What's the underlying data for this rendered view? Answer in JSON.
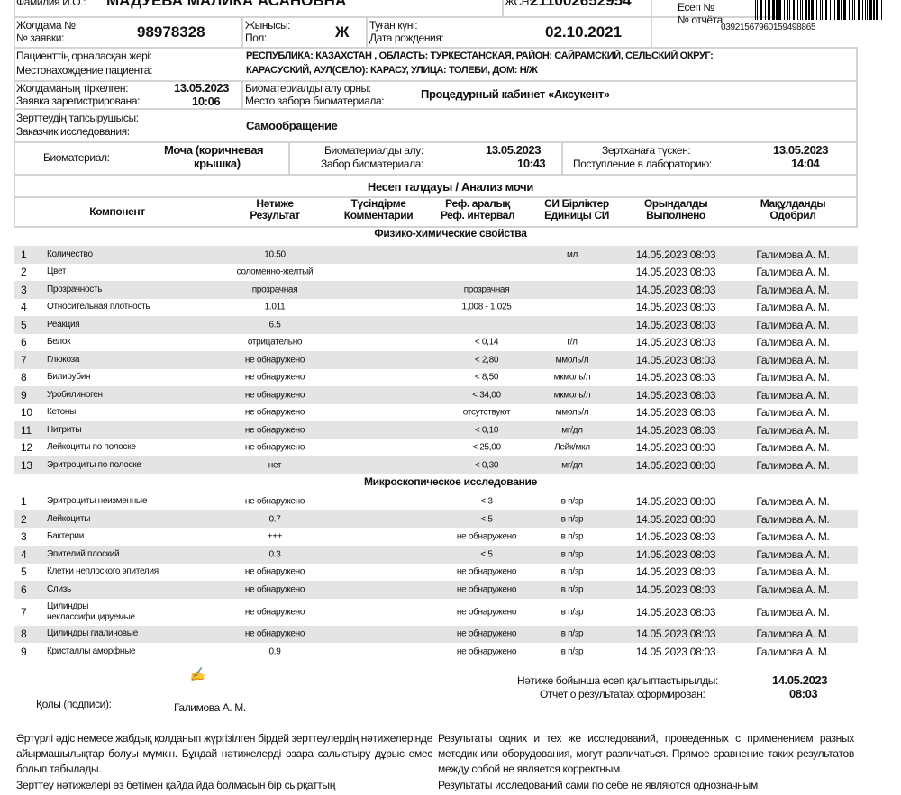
{
  "patient": {
    "name_label": "Фамилия И.О.:",
    "name": "МАДУЕВА МАЛИКА АСАНОВНА",
    "iin_label": "ЖСН:",
    "iin": "211002652954",
    "report_no_label_kz": "Есеп №",
    "report_no_label_ru": "№ отчёта",
    "barcode_number": "03921567960159498865",
    "request_label_kz": "Жолдама №",
    "request_label_ru": "№ заявки:",
    "request_no": "98978328",
    "sex_label_kz": "Жынысы:",
    "sex_label_ru": "Пол:",
    "sex": "Ж",
    "dob_label_kz": "Туған күні:",
    "dob_label_ru": "Дата рождения:",
    "dob": "02.10.2021",
    "address_label_kz": "Пациенттің орналасқан жері:",
    "address_label_ru": "Местонахождение пациента:",
    "address_line1": "РЕСПУБЛИКА: КАЗАХСТАН , ОБЛАСТЬ: ТУРКЕСТАНСКАЯ, РАЙОН: САЙРАМСКИЙ, СЕЛЬСКИЙ ОКРУГ:",
    "address_line2": "КАРАСУСКИЙ, АУЛ(СЕЛО): КАРАСУ, УЛИЦА: ТОЛЕБИ, ДОМ: Н/Ж",
    "registered_label_kz": "Жолдаманың тіркелген:",
    "registered_label_ru": "Заявка зарегистрирована:",
    "registered_date": "13.05.2023",
    "registered_time": "10:06",
    "place_label_kz": "Биоматериалды алу орны:",
    "place_label_ru": "Место забора биоматериала:",
    "place": "Процедурный кабинет «Аксукент»",
    "customer_label_kz": "Зерттеудің тапсырушысы:",
    "customer_label_ru": "Заказчик исследования:",
    "customer": "Самообращение",
    "biomaterial_label": "Биоматериал:",
    "biomaterial_1": "Моча (коричневая",
    "biomaterial_2": "крышка)",
    "collect_label_kz": "Биоматериалды алу:",
    "collect_label_ru": "Забор биоматериала:",
    "collect_date": "13.05.2023",
    "collect_time": "10:43",
    "lab_label_kz": "Зертханаға түскен:",
    "lab_label_ru": "Поступление в лабораторию:",
    "lab_date": "13.05.2023",
    "lab_time": "14:04"
  },
  "analysis_title": "Несеп талдауы / Анализ мочи",
  "columns": [
    {
      "l1": "Компонент",
      "l2": ""
    },
    {
      "l1": "Нәтиже",
      "l2": "Результат"
    },
    {
      "l1": "Түсіндірме",
      "l2": "Комментарии"
    },
    {
      "l1": "Реф. аралық",
      "l2": "Реф. интервал"
    },
    {
      "l1": "СИ Бірліктер",
      "l2": "Единицы СИ"
    },
    {
      "l1": "Орындалды",
      "l2": "Выполнено"
    },
    {
      "l1": "Мақұлданды",
      "l2": "Одобрил"
    }
  ],
  "sections": [
    {
      "title": "Физико-химические свойства",
      "rows": [
        {
          "n": "1",
          "c": "Количество",
          "r": "10.50",
          "f": "",
          "u": "мл",
          "d": "14.05.2023 08:03",
          "p": "Галимова А. М."
        },
        {
          "n": "2",
          "c": "Цвет",
          "r": "соломенно-желтый",
          "f": "",
          "u": "",
          "d": "14.05.2023 08:03",
          "p": "Галимова А. М."
        },
        {
          "n": "3",
          "c": "Прозрачность",
          "r": "прозрачная",
          "f": "прозрачная",
          "u": "",
          "d": "14.05.2023 08:03",
          "p": "Галимова А. М."
        },
        {
          "n": "4",
          "c": "Относительная плотность",
          "r": "1.011",
          "f": "1,008 - 1,025",
          "u": "",
          "d": "14.05.2023 08:03",
          "p": "Галимова А. М."
        },
        {
          "n": "5",
          "c": "Реакция",
          "r": "6.5",
          "f": "",
          "u": "",
          "d": "14.05.2023 08:03",
          "p": "Галимова А. М."
        },
        {
          "n": "6",
          "c": "Белок",
          "r": "отрицательно",
          "f": "< 0,14",
          "u": "г/л",
          "d": "14.05.2023 08:03",
          "p": "Галимова А. М."
        },
        {
          "n": "7",
          "c": "Глюкоза",
          "r": "не обнаружено",
          "f": "< 2,80",
          "u": "ммоль/л",
          "d": "14.05.2023 08:03",
          "p": "Галимова А. М."
        },
        {
          "n": "8",
          "c": "Билирубин",
          "r": "не обнаружено",
          "f": "< 8,50",
          "u": "мкмоль/л",
          "d": "14.05.2023 08:03",
          "p": "Галимова А. М."
        },
        {
          "n": "9",
          "c": "Уробилиноген",
          "r": "не обнаружено",
          "f": "< 34,00",
          "u": "мкмоль/л",
          "d": "14.05.2023 08:03",
          "p": "Галимова А. М."
        },
        {
          "n": "10",
          "c": "Кетоны",
          "r": "не обнаружено",
          "f": "отсутствуют",
          "u": "ммоль/л",
          "d": "14.05.2023 08:03",
          "p": "Галимова А. М."
        },
        {
          "n": "11",
          "c": "Нитриты",
          "r": "не обнаружено",
          "f": "< 0,10",
          "u": "мг/дл",
          "d": "14.05.2023 08:03",
          "p": "Галимова А. М."
        },
        {
          "n": "12",
          "c": "Лейкоциты по полоске",
          "r": "не обнаружено",
          "f": "< 25,00",
          "u": "Лейк/мкл",
          "d": "14.05.2023 08:03",
          "p": "Галимова А. М."
        },
        {
          "n": "13",
          "c": "Эритроциты по полоске",
          "r": "нет",
          "f": "< 0,30",
          "u": "мг/дл",
          "d": "14.05.2023 08:03",
          "p": "Галимова А. М."
        }
      ]
    },
    {
      "title": "Микроскопическое исследование",
      "rows": [
        {
          "n": "1",
          "c": "Эритроциты неизменные",
          "r": "не обнаружено",
          "f": "< 3",
          "u": "в п/зр",
          "d": "14.05.2023 08:03",
          "p": "Галимова А. М."
        },
        {
          "n": "2",
          "c": "Лейкоциты",
          "r": "0.7",
          "f": "< 5",
          "u": "в п/зр",
          "d": "14.05.2023 08:03",
          "p": "Галимова А. М."
        },
        {
          "n": "3",
          "c": "Бактерии",
          "r": "+++",
          "f": "не обнаружено",
          "u": "в п/зр",
          "d": "14.05.2023 08:03",
          "p": "Галимова А. М."
        },
        {
          "n": "4",
          "c": "Эпителий плоский",
          "r": "0.3",
          "f": "< 5",
          "u": "в п/зр",
          "d": "14.05.2023 08:03",
          "p": "Галимова А. М."
        },
        {
          "n": "5",
          "c": "Клетки неплоского эпителия",
          "r": "не обнаружено",
          "f": "не обнаружено",
          "u": "в п/зр",
          "d": "14.05.2023 08:03",
          "p": "Галимова А. М."
        },
        {
          "n": "6",
          "c": "Слизь",
          "r": "не обнаружено",
          "f": "не обнаружено",
          "u": "в п/зр",
          "d": "14.05.2023 08:03",
          "p": "Галимова А. М."
        },
        {
          "n": "7",
          "c": "Цилиндры\nнеклассифицируемые",
          "r": "не обнаружено",
          "f": "не обнаружено",
          "u": "в п/зр",
          "d": "14.05.2023 08:03",
          "p": "Галимова А. М."
        },
        {
          "n": "8",
          "c": "Цилиндры гиалиновые",
          "r": "не обнаружено",
          "f": "не обнаружено",
          "u": "в п/зр",
          "d": "14.05.2023 08:03",
          "p": "Галимова А. М."
        },
        {
          "n": "9",
          "c": "Кристаллы аморфные",
          "r": "0.9",
          "f": "не обнаружено",
          "u": "в п/зр",
          "d": "14.05.2023 08:03",
          "p": "Галимова А. М."
        }
      ]
    }
  ],
  "footer": {
    "sign_label": "Қолы (подписи):",
    "signer": "Галимова А. М.",
    "signature": "А. Галим",
    "formed_label_kz": "Нәтиже бойынша есеп қалыптастырылды:",
    "formed_label_ru": "Отчет о результатах сформирован:",
    "formed_date": "14.05.2023",
    "formed_time": "08:03",
    "note1_kz": "Әртүрлі әдіс немесе жабдық қолданып жүргізілген бірдей зерттеулердің нәтижелерінде айырмашылықтар болуы мүмкін. Бұндай нәтижелерді өзара салыстыру дұрыс емес болып табылады.",
    "note1_ru": "Результаты одних и тех же исследований, проведенных с применением разных методик или оборудования, могут различаться. Прямое сравнение таких результатов между собой не является корректным.",
    "note2_kz": "Зерттеу нәтижелері өз бетімен қайда йда болмасын бір сырқаттың",
    "note2_ru": "Результаты исследований сами по себе не являются однозначным"
  }
}
